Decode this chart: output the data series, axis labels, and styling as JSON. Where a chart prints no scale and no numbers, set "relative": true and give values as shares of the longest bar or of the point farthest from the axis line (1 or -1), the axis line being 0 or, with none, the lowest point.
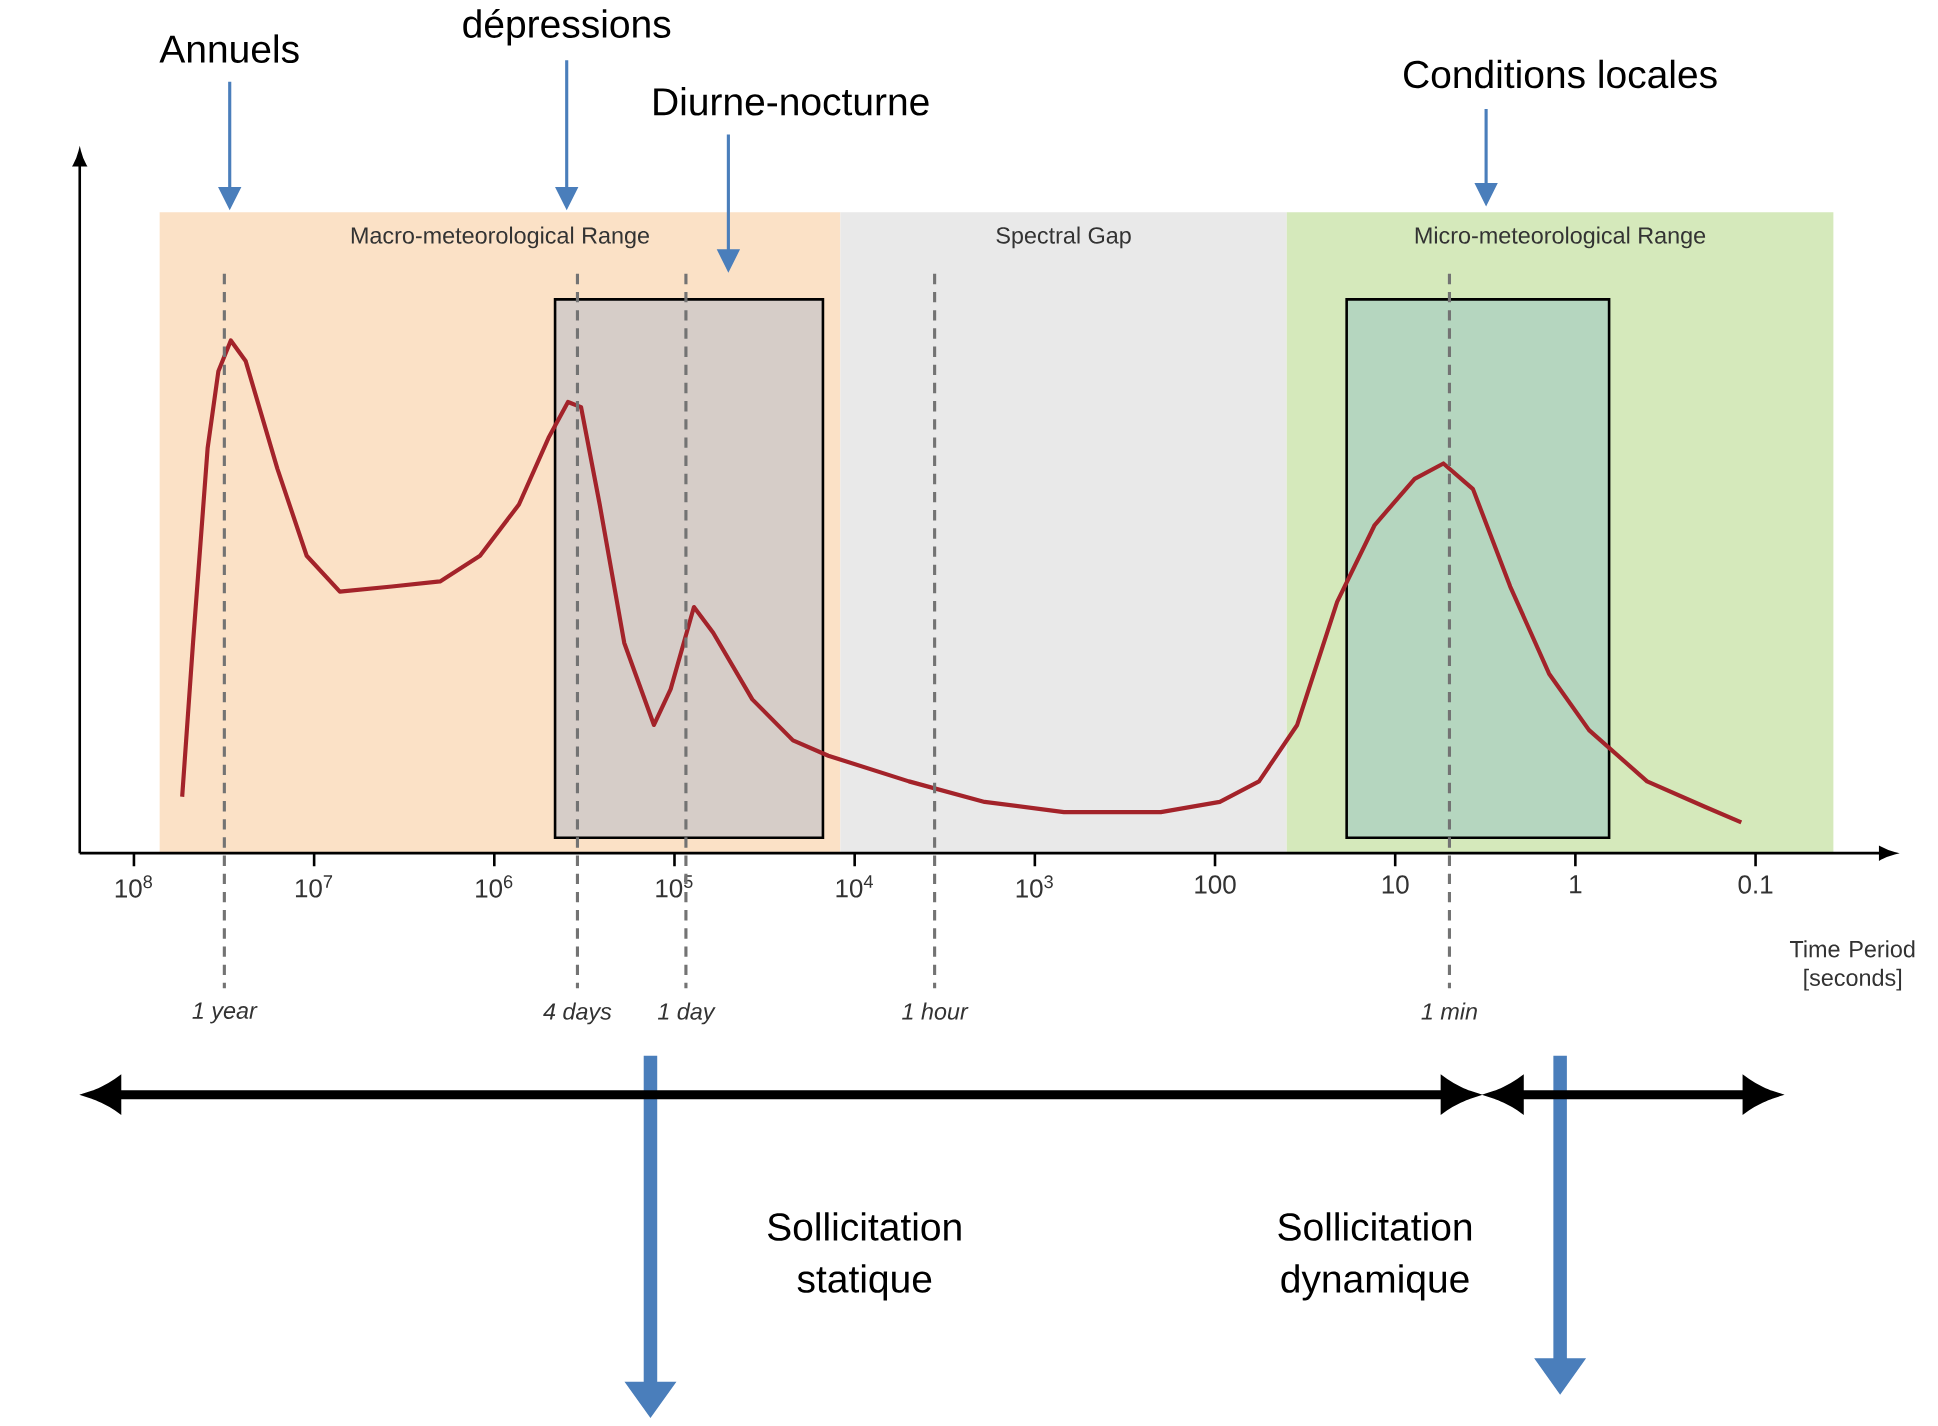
{
  "chart_data": {
    "type": "line",
    "relative": true,
    "xlabel": "Time Period [seconds]",
    "log": "x",
    "xlim": [
      200000000.0,
      0.02
    ],
    "xticks": [
      {
        "value": 100000000.0,
        "label": "10$^{8}$"
      },
      {
        "value": 10000000.0,
        "label": "10$^{7}$"
      },
      {
        "value": 1000000.0,
        "label": "10$^{6}$"
      },
      {
        "value": 100000.0,
        "label": "10$^{5}$"
      },
      {
        "value": 10000.0,
        "label": "10$^{4}$"
      },
      {
        "value": 1000.0,
        "label": "10$^{3}$"
      },
      100,
      10,
      1,
      0.1
    ],
    "series": [
      {
        "color": "#a3232a",
        "x": [
          54000000.0,
          47000000.0,
          39000000.0,
          34000000.0,
          29000000.0,
          24000000.0,
          16000000.0,
          11000000.0,
          7200000.0,
          3700000.0,
          2000000.0,
          1200000.0,
          730000.0,
          500000.0,
          390000.0,
          330000.0,
          260000.0,
          190000.0,
          130000.0,
          105000.0,
          78000.0,
          61000.0,
          37000.0,
          22000.0,
          14000.0,
          5000.0,
          1900.0,
          690,
          200,
          94,
          57,
          35,
          21,
          13,
          7.8,
          5.4,
          3.7,
          2.3,
          1.4,
          0.84,
          0.4,
          0.19,
          0.12
        ],
        "values": [
          0.11,
          0.41,
          0.79,
          0.94,
          1,
          0.96,
          0.75,
          0.58,
          0.51,
          0.52,
          0.53,
          0.58,
          0.68,
          0.81,
          0.88,
          0.87,
          0.68,
          0.41,
          0.25,
          0.32,
          0.48,
          0.43,
          0.3,
          0.22,
          0.19,
          0.14,
          0.1,
          0.08,
          0.08,
          0.1,
          0.14,
          0.25,
          0.49,
          0.64,
          0.73,
          0.76,
          0.71,
          0.52,
          0.35,
          0.24,
          0.14,
          0.09,
          0.06
        ]
      }
    ],
    "bands": [
      {
        "axis": "x",
        "from": 72000000.0,
        "to": 12000.0,
        "label": "Macro-meteorological Range",
        "color": "#fbe1c6"
      },
      {
        "axis": "x",
        "from": 12000.0,
        "to": 40,
        "label": "Spectral Gap",
        "color": "#e9e9e9"
      },
      {
        "axis": "x",
        "from": 40,
        "to": 0.037,
        "label": "Micro-meteorological Range",
        "color": "#d5e9bb"
      },
      {
        "axis": "x",
        "from": 460000.0,
        "to": 15000.0,
        "color": "#d6cdc8"
      },
      {
        "axis": "x",
        "from": 18.6,
        "to": 0.65,
        "color": "#b5d6bf"
      }
    ],
    "ref_lines": [
      {
        "axis": "x",
        "value": 31500000.0,
        "label": "1 year",
        "line_style": "dashed"
      },
      {
        "axis": "x",
        "value": 345600,
        "label": "4 days",
        "line_style": "dashed"
      },
      {
        "axis": "x",
        "value": 86400,
        "label": "1 day",
        "line_style": "dashed"
      },
      {
        "axis": "x",
        "value": 3600,
        "label": "1 hour",
        "line_style": "dashed"
      },
      {
        "axis": "x",
        "value": 5,
        "label": "1 min",
        "line_style": "dashed"
      }
    ],
    "annotations": [
      "Annuels",
      "dépressions",
      "Diurne-nocturne",
      "Conditions locales",
      "Sollicitation statique",
      "Sollicitation dynamique"
    ]
  }
}
